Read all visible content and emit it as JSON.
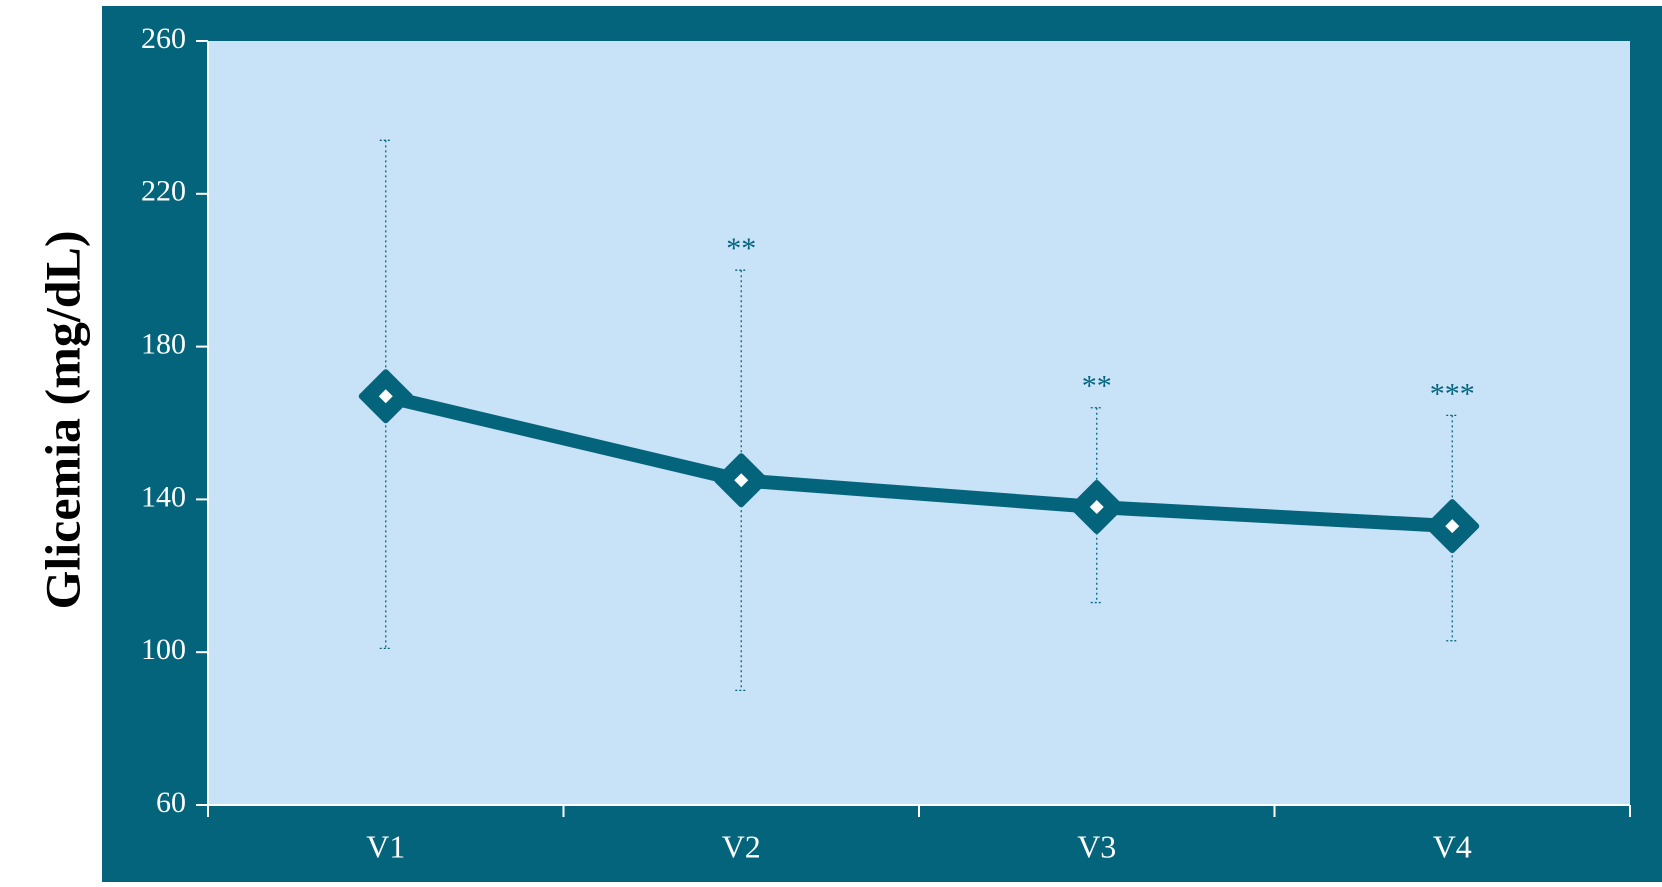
{
  "chart_data": {
    "type": "line",
    "title": "",
    "xlabel": "",
    "ylabel": "Glicemia  (mg/dL)",
    "categories": [
      "V1",
      "V2",
      "V3",
      "V4"
    ],
    "series": [
      {
        "values": [
          167,
          145,
          138,
          133
        ],
        "error_upper": [
          234,
          200,
          164,
          162
        ],
        "error_lower": [
          101,
          90,
          113,
          103
        ],
        "annotations": [
          "",
          "**",
          "**",
          "***"
        ]
      }
    ],
    "ylim": [
      60,
      260
    ],
    "yticks": [
      60,
      100,
      140,
      180,
      220,
      260
    ],
    "grid": false,
    "legend": "none"
  },
  "colors": {
    "frame": "#04647c",
    "plot_area": "#c8e2f8",
    "series": "#04647c",
    "marker_fill": "#ffffff",
    "axis_text": "#ffffff",
    "annotation": "#04647c",
    "ylabel": "#000000"
  }
}
